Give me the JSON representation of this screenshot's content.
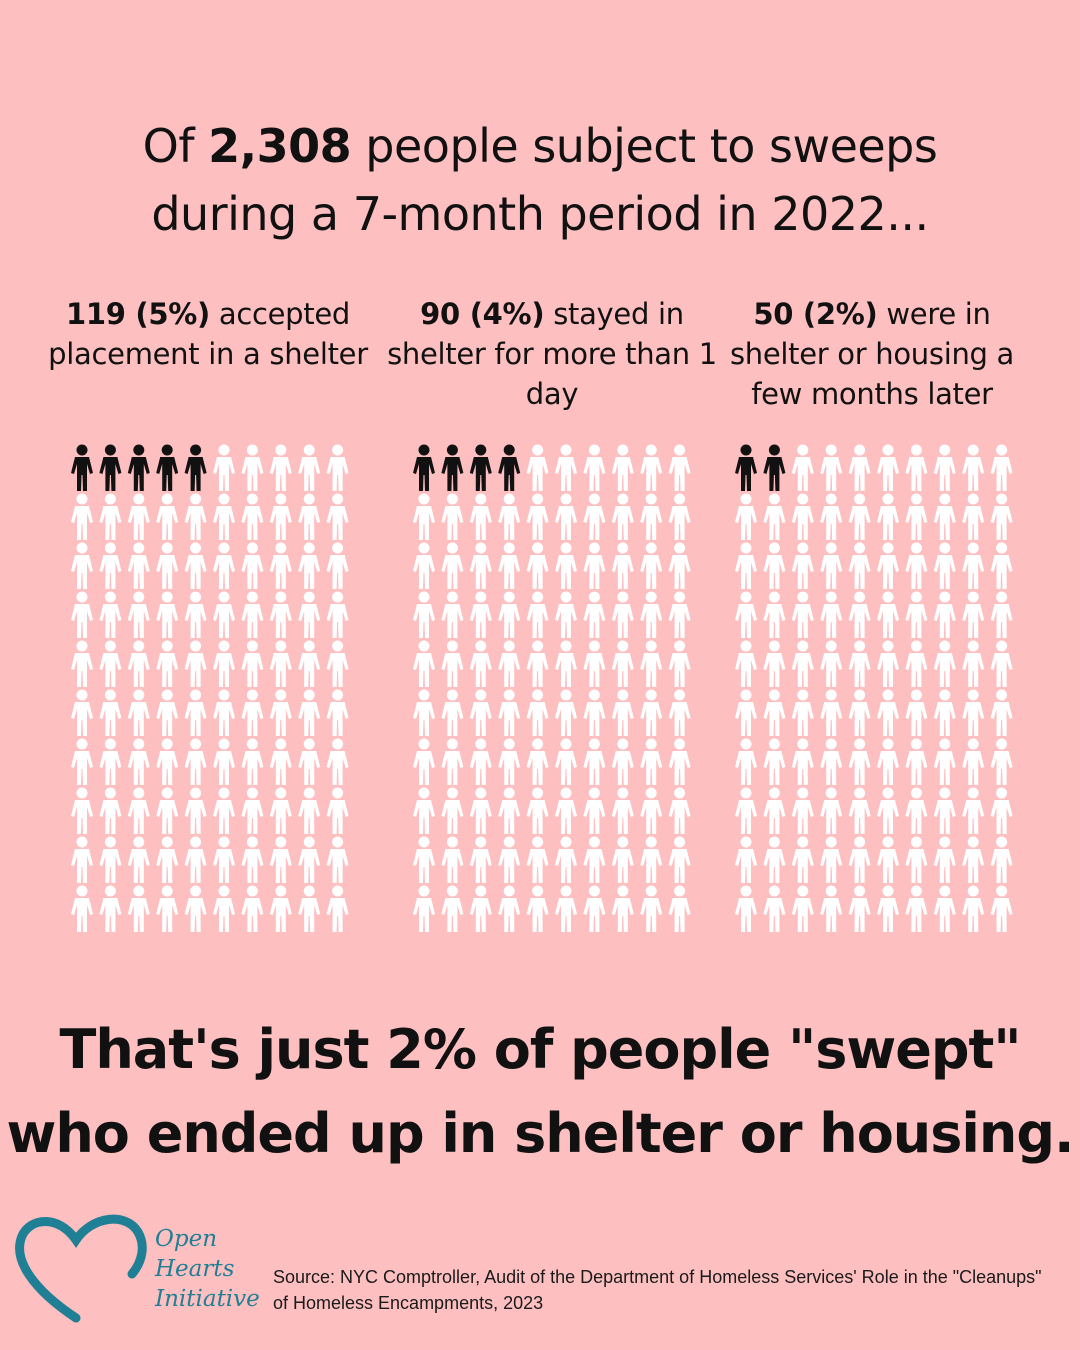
{
  "headline": {
    "pre": "Of ",
    "bold": "2,308",
    "post": " people subject to sweeps",
    "line2": "during a 7-month period in 2022..."
  },
  "stats": [
    {
      "bold": "119 (5%)",
      "text": " accepted placement in a shelter"
    },
    {
      "bold": "90 (4%)",
      "text": " stayed in shelter for more than 1 day"
    },
    {
      "bold": "50 (2%)",
      "text": " were in shelter or housing a few months later"
    }
  ],
  "chart_data": {
    "type": "pictograph",
    "total": 2308,
    "icons_per_grid": 100,
    "series": [
      {
        "name": "accepted placement in a shelter",
        "count": 119,
        "percent": 5,
        "highlighted_icons": 5
      },
      {
        "name": "stayed in shelter for more than 1 day",
        "count": 90,
        "percent": 4,
        "highlighted_icons": 4
      },
      {
        "name": "were in shelter or housing a few months later",
        "count": 50,
        "percent": 2,
        "highlighted_icons": 2
      }
    ],
    "colors": {
      "highlight": "#111111",
      "other": "#ffffff"
    }
  },
  "tagline": {
    "line1": "That's just 2% of people \"swept\"",
    "line2": "who ended up in shelter or housing."
  },
  "logo": {
    "line1": "Open",
    "line2": "Hearts",
    "line3": "Initiative",
    "color": "#1f7f95"
  },
  "source": "Source: NYC Comptroller, Audit of the Department of Homeless Services' Role in the \"Cleanups\" of Homeless Encampments, 2023"
}
